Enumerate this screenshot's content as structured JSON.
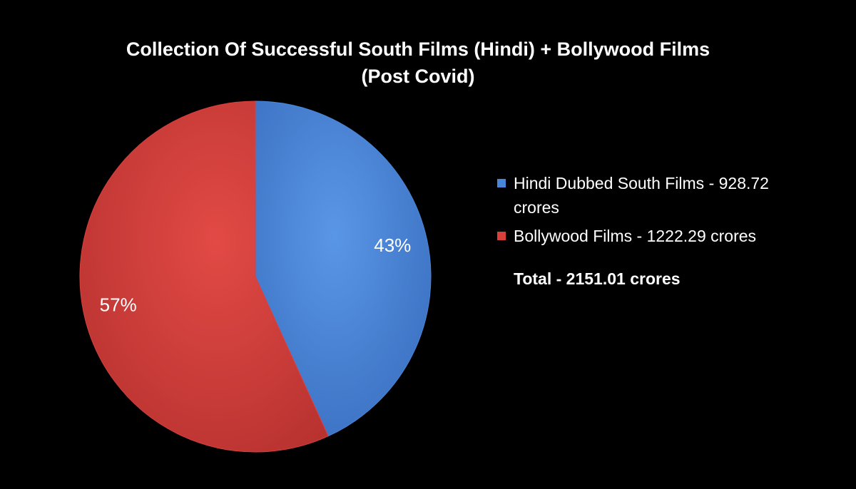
{
  "chart_data": {
    "type": "pie",
    "title": "Collection Of Successful South Films (Hindi) + Bollywood Films",
    "subtitle": "(Post Covid)",
    "series": [
      {
        "name": "Hindi Dubbed South Films - 928.72 crores",
        "value": 928.72,
        "percent_label": "43%",
        "color": "#4A86D8"
      },
      {
        "name": "Bollywood Films - 1222.29 crores",
        "value": 1222.29,
        "percent_label": "57%",
        "color": "#D9403C"
      }
    ],
    "total_label": "Total - 2151.01 crores",
    "legend_position": "right"
  },
  "colors": {
    "background": "#000000",
    "text": "#FFFFFF"
  }
}
